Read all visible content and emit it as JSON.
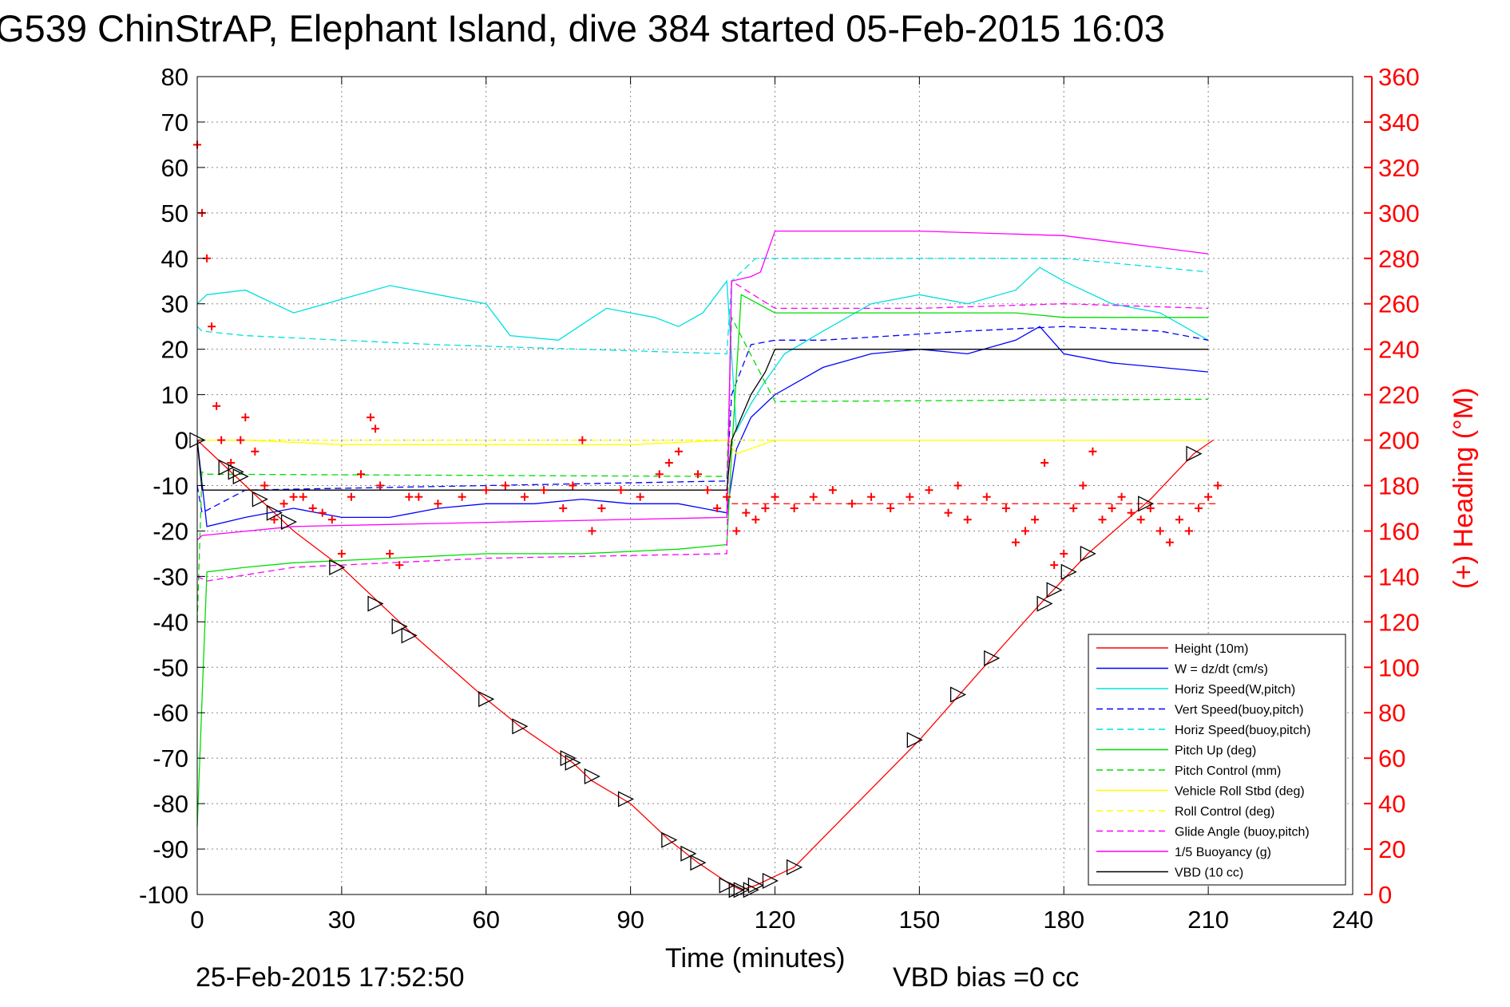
{
  "chart_data": {
    "type": "line",
    "title": "G539 ChinStrAP, Elephant Island, dive 384 started 05-Feb-2015 16:03",
    "xlabel": "Time (minutes)",
    "ylabel_right": "(+) Heading (°M)",
    "xlim": [
      0,
      240
    ],
    "ylim": [
      -100,
      80
    ],
    "ylim_right": [
      0,
      360
    ],
    "xticks": [
      "0",
      "30",
      "60",
      "90",
      "120",
      "150",
      "180",
      "210",
      "240"
    ],
    "yticks": [
      "80",
      "70",
      "60",
      "50",
      "40",
      "30",
      "20",
      "10",
      "0",
      "-10",
      "-20",
      "-30",
      "-40",
      "-50",
      "-60",
      "-70",
      "-80",
      "-90",
      "-100"
    ],
    "yticks_right": [
      "360",
      "340",
      "320",
      "300",
      "280",
      "260",
      "240",
      "220",
      "200",
      "180",
      "160",
      "140",
      "120",
      "100",
      "80",
      "60",
      "40",
      "20",
      "0"
    ],
    "grid": true,
    "legend_position": "bottom-right",
    "footer_left": "25-Feb-2015 17:52:50",
    "footer_right": "VBD bias =0 cc",
    "series": [
      {
        "name": "Height (10m)",
        "color": "#ff0000",
        "style": "solid",
        "x": [
          0,
          10,
          20,
          30,
          45,
          60,
          67,
          78,
          82,
          90,
          98,
          104,
          111,
          113,
          116,
          120,
          124,
          150,
          165,
          176,
          185,
          198,
          207,
          211
        ],
        "y": [
          0,
          -10,
          -20,
          -28,
          -43,
          -57,
          -63,
          -71,
          -75,
          -80,
          -88,
          -93,
          -98,
          -99,
          -98,
          -96,
          -94,
          -66,
          -48,
          -35,
          -25,
          -13,
          -3,
          0
        ]
      },
      {
        "name": "W = dz/dt (cm/s)",
        "color": "#0000ff",
        "style": "solid",
        "x": [
          0,
          2,
          10,
          20,
          30,
          40,
          50,
          60,
          70,
          80,
          90,
          100,
          110,
          112,
          115,
          120,
          130,
          140,
          150,
          160,
          170,
          175,
          180,
          190,
          200,
          210
        ],
        "y": [
          0,
          -19,
          -17,
          -15,
          -17,
          -17,
          -15,
          -14,
          -14,
          -13,
          -14,
          -14,
          -16,
          -2,
          5,
          10,
          16,
          19,
          20,
          19,
          22,
          25,
          19,
          17,
          16,
          15
        ]
      },
      {
        "name": "Horiz Speed(W,pitch)",
        "color": "#00e0e0",
        "style": "solid",
        "x": [
          0,
          2,
          10,
          20,
          30,
          40,
          50,
          60,
          65,
          75,
          85,
          95,
          100,
          105,
          110,
          112,
          115,
          118,
          122,
          130,
          140,
          150,
          160,
          170,
          175,
          180,
          190,
          200,
          210
        ],
        "y": [
          30,
          32,
          33,
          28,
          31,
          34,
          32,
          30,
          23,
          22,
          29,
          27,
          25,
          28,
          35,
          2,
          8,
          13,
          19,
          24,
          30,
          32,
          30,
          33,
          38,
          35,
          30,
          28,
          22
        ]
      },
      {
        "name": "Vert Speed(buoy,pitch)",
        "color": "#0000ff",
        "style": "dashed",
        "x": [
          0,
          1,
          10,
          110,
          111,
          115,
          120,
          130,
          160,
          180,
          200,
          210
        ],
        "y": [
          -10,
          -16,
          -11,
          -9,
          10,
          21,
          22,
          22,
          24,
          25,
          24,
          22
        ]
      },
      {
        "name": "Horiz Speed(buoy,pitch)",
        "color": "#00e0e0",
        "style": "dashed",
        "x": [
          0,
          1,
          10,
          50,
          110,
          111,
          116,
          120,
          150,
          180,
          210
        ],
        "y": [
          25,
          24,
          23,
          21,
          19,
          35,
          40,
          40,
          40,
          40,
          37
        ]
      },
      {
        "name": "Pitch Up (deg)",
        "color": "#00dd00",
        "style": "solid",
        "x": [
          0,
          2,
          10,
          20,
          40,
          60,
          80,
          100,
          110,
          111,
          113,
          120,
          130,
          150,
          170,
          180,
          190,
          200,
          210
        ],
        "y": [
          -85,
          -29,
          -28,
          -27,
          -26,
          -25,
          -25,
          -24,
          -23,
          -3,
          32,
          28,
          28,
          28,
          28,
          27,
          27,
          27,
          27
        ]
      },
      {
        "name": "Pitch Control (mm)",
        "color": "#00dd00",
        "style": "dashed",
        "x": [
          0,
          1,
          2,
          110,
          111,
          120,
          210
        ],
        "y": [
          -40,
          -7,
          -7.5,
          -8,
          27,
          8.5,
          9
        ]
      },
      {
        "name": "Vehicle Roll Stbd (deg)",
        "color": "#ffff00",
        "style": "solid",
        "x": [
          0,
          10,
          30,
          60,
          90,
          110,
          112,
          120,
          150,
          180,
          210
        ],
        "y": [
          0,
          0,
          -1,
          -1,
          -1,
          0,
          -3,
          0,
          0,
          0,
          0
        ]
      },
      {
        "name": "Roll Control (deg)",
        "color": "#ffff00",
        "style": "dashed",
        "x": [
          0,
          10,
          30,
          60,
          90,
          110,
          120,
          150,
          180,
          210
        ],
        "y": [
          0,
          0,
          0,
          0,
          0,
          0,
          0,
          0,
          0,
          0
        ]
      },
      {
        "name": "Glide Angle (buoy,pitch)",
        "color": "#ff00ff",
        "style": "dashed",
        "x": [
          0,
          2,
          20,
          60,
          110,
          111,
          120,
          150,
          180,
          210
        ],
        "y": [
          -30,
          -31,
          -28,
          -26,
          -25,
          35,
          29,
          29,
          30,
          29
        ]
      },
      {
        "name": "1/5 Buoyancy (g)",
        "color": "#ff00ff",
        "style": "solid",
        "x": [
          0,
          1,
          20,
          110,
          111,
          115,
          117,
          120,
          150,
          180,
          210
        ],
        "y": [
          -22,
          -21,
          -19,
          -17,
          35,
          36,
          37,
          46,
          46,
          45,
          41
        ]
      },
      {
        "name": "VBD (10 cc)",
        "color": "#000000",
        "style": "solid",
        "x": [
          0,
          1,
          110,
          111,
          115,
          118,
          120,
          210
        ],
        "y": [
          0,
          -11,
          -11,
          0,
          10,
          15,
          20,
          20
        ]
      }
    ],
    "heading": {
      "name": "(+) Heading",
      "color": "#ff0000",
      "marker": "+",
      "x": [
        0,
        1,
        2,
        3,
        4,
        5,
        7,
        9,
        10,
        12,
        14,
        16,
        18,
        20,
        22,
        24,
        26,
        28,
        30,
        32,
        34,
        36,
        37,
        38,
        40,
        42,
        44,
        46,
        50,
        55,
        60,
        64,
        68,
        72,
        76,
        78,
        80,
        82,
        84,
        88,
        92,
        96,
        98,
        100,
        104,
        106,
        108,
        110,
        112,
        114,
        116,
        118,
        120,
        124,
        128,
        132,
        136,
        140,
        144,
        148,
        152,
        156,
        158,
        160,
        164,
        168,
        170,
        172,
        174,
        176,
        178,
        180,
        182,
        184,
        186,
        188,
        190,
        192,
        194,
        196,
        198,
        200,
        202,
        204,
        206,
        208,
        210,
        212
      ],
      "y": [
        330,
        300,
        280,
        250,
        215,
        200,
        190,
        200,
        210,
        195,
        180,
        165,
        172,
        175,
        175,
        170,
        168,
        165,
        150,
        175,
        185,
        210,
        205,
        180,
        150,
        145,
        175,
        175,
        172,
        175,
        178,
        180,
        175,
        178,
        170,
        180,
        200,
        160,
        170,
        178,
        175,
        185,
        190,
        195,
        185,
        178,
        170,
        175,
        160,
        168,
        165,
        170,
        175,
        170,
        175,
        178,
        172,
        175,
        170,
        175,
        178,
        168,
        180,
        165,
        175,
        170,
        155,
        160,
        165,
        190,
        145,
        150,
        170,
        180,
        195,
        165,
        170,
        175,
        168,
        165,
        170,
        160,
        155,
        165,
        160,
        170,
        175,
        180
      ]
    },
    "heading_reference": {
      "style": "dashed",
      "color": "#ff0000",
      "y_right": 172,
      "x": [
        111,
        212
      ]
    },
    "markers": {
      "symbol": "triangle",
      "x": [
        0,
        6,
        8,
        9,
        13,
        16,
        19,
        29,
        37,
        42,
        44,
        60,
        67,
        77,
        78,
        82,
        89,
        98,
        102,
        104,
        110,
        112,
        113,
        115,
        116,
        119,
        124,
        149,
        158,
        165,
        176,
        178,
        181,
        185,
        197,
        207
      ],
      "y": [
        0,
        -6,
        -7,
        -8,
        -13,
        -16,
        -18,
        -28,
        -36,
        -41,
        -43,
        -57,
        -63,
        -70,
        -71,
        -74,
        -79,
        -88,
        -91,
        -93,
        -98,
        -99,
        -99,
        -99,
        -98,
        -97,
        -94,
        -66,
        -56,
        -48,
        -36,
        -33,
        -29,
        -25,
        -14,
        -3
      ]
    }
  }
}
